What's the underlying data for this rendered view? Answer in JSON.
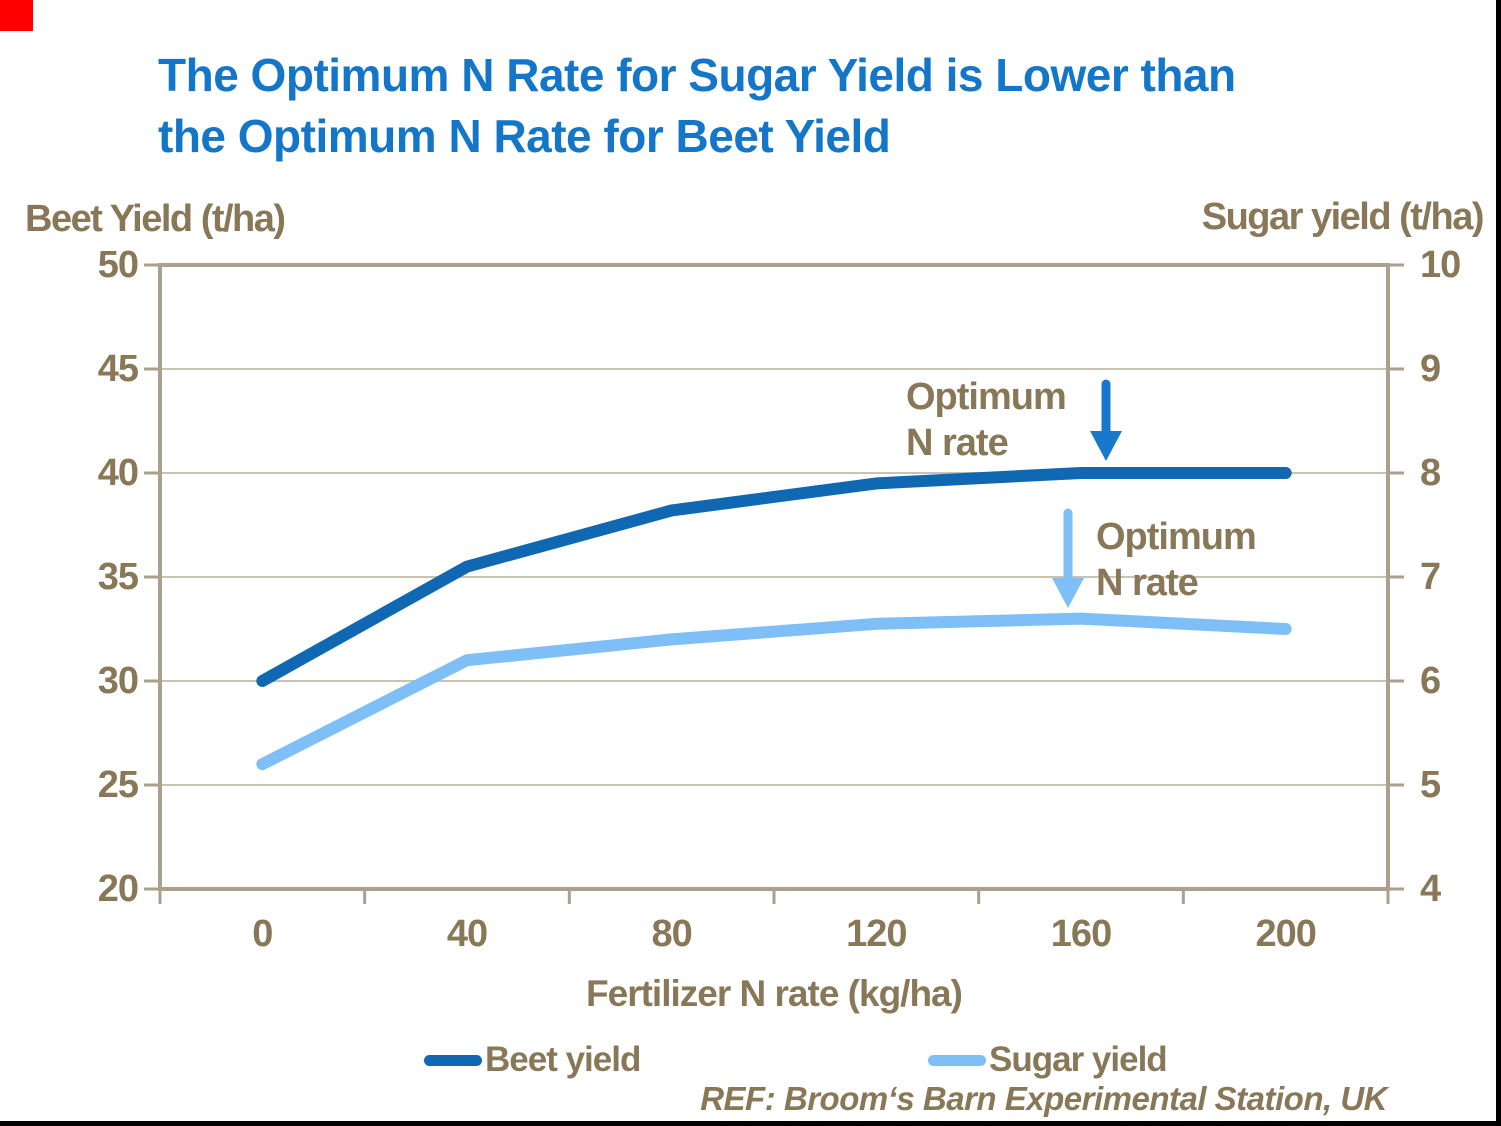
{
  "page": {
    "title_line1": "The Optimum N Rate for Sugar Yield is Lower than",
    "title_line2": "the Optimum N Rate for Beet Yield",
    "reference": "REF: Broom‘s Barn Experimental Station, UK"
  },
  "annotations": {
    "beet_optimum": {
      "line1": "Optimum",
      "line2": "N rate"
    },
    "sugar_optimum": {
      "line1": "Optimum",
      "line2": "N rate"
    }
  },
  "chart_data": {
    "type": "line",
    "title": "The Optimum N Rate for Sugar Yield is Lower than the Optimum N Rate for Beet Yield",
    "x": [
      0,
      40,
      80,
      120,
      160,
      200
    ],
    "x_tick_labels": [
      "0",
      "40",
      "80",
      "120",
      "160",
      "200"
    ],
    "xlabel": "Fertilizer N rate (kg/ha)",
    "left_axis": {
      "label": "Beet Yield (t/ha)",
      "range": [
        20,
        50
      ],
      "ticks": [
        50,
        45,
        40,
        35,
        30,
        25,
        20
      ]
    },
    "right_axis": {
      "label": "Sugar yield (t/ha)",
      "range": [
        4,
        10
      ],
      "ticks": [
        10,
        9,
        8,
        7,
        6,
        5,
        4
      ]
    },
    "series": [
      {
        "name": "Beet yield",
        "axis": "left",
        "color": "#1068b2",
        "values": [
          30,
          35.5,
          38.2,
          39.5,
          40,
          40
        ]
      },
      {
        "name": "Sugar yield",
        "axis": "right",
        "color": "#7ebff7",
        "values": [
          5.2,
          6.2,
          6.4,
          6.55,
          6.6,
          6.5
        ]
      }
    ],
    "grid": true,
    "legend_position": "bottom"
  },
  "colors": {
    "title_blue": "#1476c8",
    "text_brown": "#887858",
    "beet_line": "#1068b2",
    "sugar_line": "#7ebff7",
    "arrow_dark": "#1878cc",
    "grid": "#cac2b2",
    "axis": "#aaa08d",
    "slide_border": "#000000",
    "red_marker": "#ff0000"
  }
}
